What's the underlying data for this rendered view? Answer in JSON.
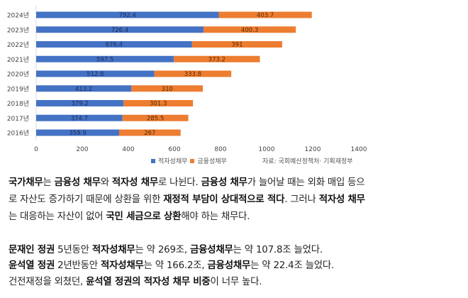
{
  "chart_data": {
    "type": "bar",
    "orientation": "horizontal",
    "stacked": true,
    "categories": [
      "2024년",
      "2023년",
      "2022년",
      "2021년",
      "2020년",
      "2019년",
      "2018년",
      "2017년",
      "2016년"
    ],
    "series": [
      {
        "name": "적자성채무",
        "color": "#4472C4",
        "values": [
          792.4,
          726.4,
          676.4,
          597.5,
          512.8,
          413.2,
          379.2,
          374.7,
          359.9
        ]
      },
      {
        "name": "금융성채무",
        "color": "#ED7D31",
        "values": [
          403.7,
          400.3,
          391,
          373.2,
          333.8,
          310,
          301.3,
          285.5,
          267
        ]
      }
    ],
    "xlim": [
      0,
      1400
    ],
    "xticks": [
      0,
      200,
      400,
      600,
      800,
      1000,
      1200,
      1400
    ],
    "data_labels": true,
    "grid": false,
    "legend_position": "bottom",
    "source": "자료: 국회예산정책처· 기획재정부"
  },
  "paragraphs": [
    [
      [
        {
          "t": "국가채무",
          "b": true
        },
        {
          "t": "는 "
        },
        {
          "t": "금융성 채무",
          "b": true
        },
        {
          "t": "와 "
        },
        {
          "t": "적자성 채무",
          "b": true
        },
        {
          "t": "로 나뉜다. "
        },
        {
          "t": "금융성 채무",
          "b": true
        },
        {
          "t": "가 늘어날 때는 외화 매입 등으"
        }
      ],
      [
        {
          "t": "로 자산도 증가하기 때문에 상환을 위한 "
        },
        {
          "t": "재정적 부담이 상대적으로 적다",
          "b": true
        },
        {
          "t": ". 그러나 "
        },
        {
          "t": "적자성 채무",
          "b": true
        }
      ],
      [
        {
          "t": "는 대응하는 자산이 없어 "
        },
        {
          "t": "국민 세금으로 상환",
          "b": true
        },
        {
          "t": "해야 하는 채무다."
        }
      ]
    ],
    [
      [
        {
          "t": "문재인 정권",
          "b": true
        },
        {
          "t": " 5년동안 "
        },
        {
          "t": "적자성채무",
          "b": true
        },
        {
          "t": "는 약 269조, "
        },
        {
          "t": "금융성채무",
          "b": true
        },
        {
          "t": "는 약 107.8조 늘었다."
        }
      ],
      [
        {
          "t": "윤석열 정권",
          "b": true
        },
        {
          "t": " 2년반동안 "
        },
        {
          "t": "적자성채무",
          "b": true
        },
        {
          "t": "는 약 166.2조, "
        },
        {
          "t": "금융성채무",
          "b": true
        },
        {
          "t": "는 약 22.4조 늘었다."
        }
      ],
      [
        {
          "t": "건전재정을 외쳤던, "
        },
        {
          "t": "윤석열 정권의 적자성 채무 비중",
          "b": true
        },
        {
          "t": "이 너무 높다."
        }
      ]
    ]
  ]
}
